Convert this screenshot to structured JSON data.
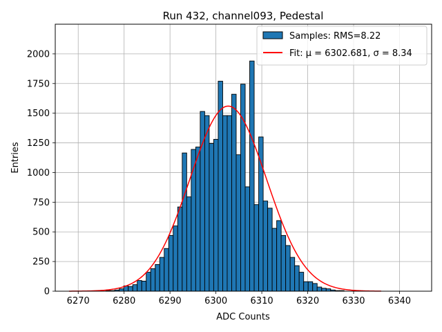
{
  "chart_data": {
    "type": "bar",
    "title": "Run 432, channel093, Pedestal",
    "xlabel": "ADC Counts",
    "ylabel": "Entries",
    "xlim": [
      6265,
      6347
    ],
    "ylim": [
      0,
      2250
    ],
    "xticks": [
      6270,
      6280,
      6290,
      6300,
      6310,
      6320,
      6330,
      6340
    ],
    "yticks": [
      0,
      250,
      500,
      750,
      1000,
      1250,
      1500,
      1750,
      2000
    ],
    "grid": true,
    "legend_position": "top-right",
    "histogram": {
      "name": "Samples: RMS=8.22",
      "bin_start": 6276,
      "bin_width": 0.98,
      "color": "#1f77b4",
      "edgecolor": "#000000",
      "counts": [
        5,
        5,
        10,
        20,
        45,
        40,
        55,
        90,
        85,
        160,
        190,
        225,
        285,
        360,
        470,
        550,
        710,
        1165,
        795,
        1195,
        1215,
        1515,
        1480,
        1245,
        1280,
        1770,
        1480,
        1480,
        1660,
        1150,
        1745,
        880,
        1940,
        730,
        1300,
        760,
        700,
        530,
        595,
        470,
        385,
        285,
        215,
        160,
        80,
        80,
        65,
        35,
        25,
        20,
        10,
        5,
        5
      ]
    },
    "fit": {
      "name": "Fit: μ = 6302.681, σ = 8.34",
      "color": "#ff0000",
      "mu": 6302.681,
      "sigma": 8.34,
      "amplitude": 1560,
      "x_range": [
        6268,
        6336
      ]
    }
  }
}
